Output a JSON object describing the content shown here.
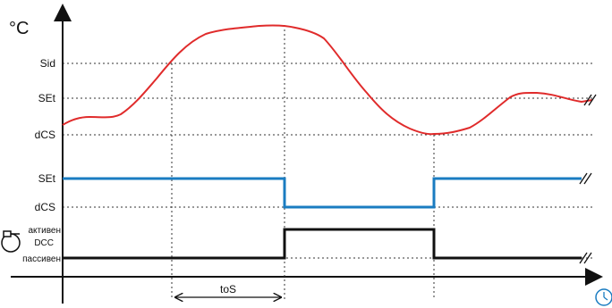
{
  "temperature_axis": {
    "unit": "°C"
  },
  "temperature_levels": {
    "sid": "Sid",
    "set": "SEt",
    "dcs": "dCS"
  },
  "setpoint_levels": {
    "set": "SEt",
    "dcs": "dCS"
  },
  "dcc_state": {
    "active": "активен",
    "name": "DCC",
    "passive": "пассивен"
  },
  "interval_label": "toS",
  "icons": {
    "compressor": "compressor-icon",
    "clock": "clock-icon",
    "break": "axis-break-icon"
  },
  "colors": {
    "temperature": "#e02b2b",
    "setpoint": "#1a7cc1",
    "dcc": "#111111"
  }
}
